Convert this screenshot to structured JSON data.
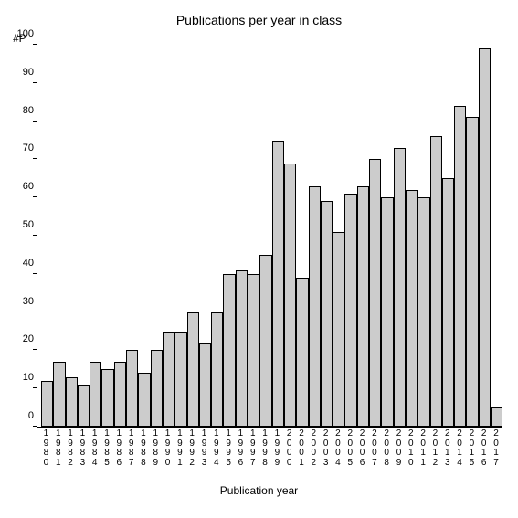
{
  "chart": {
    "type": "bar",
    "title": "Publications per year in class",
    "title_fontsize": 14,
    "yaxis_label": "#P",
    "xaxis_label": "Publication year",
    "label_fontsize": 12,
    "background_color": "#ffffff",
    "border_color": "#000000",
    "bar_fill_color": "#cccccc",
    "bar_border_color": "#000000",
    "bar_width": 1.0,
    "ylim": [
      0,
      100
    ],
    "ytick_step": 10,
    "yticks": [
      0,
      10,
      20,
      30,
      40,
      50,
      60,
      70,
      80,
      90,
      100
    ],
    "tick_fontsize": 11,
    "categories": [
      "1980",
      "1981",
      "1982",
      "1983",
      "1984",
      "1985",
      "1986",
      "1987",
      "1988",
      "1989",
      "1990",
      "1991",
      "1992",
      "1993",
      "1994",
      "1995",
      "1996",
      "1997",
      "1998",
      "1999",
      "2000",
      "2001",
      "2002",
      "2003",
      "2004",
      "2005",
      "2006",
      "2007",
      "2008",
      "2009",
      "2010",
      "2011",
      "2012",
      "2013",
      "2014",
      "2015",
      "2016",
      "2017"
    ],
    "values": [
      12,
      17,
      13,
      11,
      17,
      15,
      17,
      20,
      14,
      20,
      25,
      25,
      30,
      22,
      30,
      40,
      41,
      40,
      45,
      75,
      69,
      39,
      63,
      59,
      51,
      61,
      63,
      70,
      60,
      73,
      62,
      60,
      76,
      65,
      84,
      81,
      99,
      5
    ]
  }
}
